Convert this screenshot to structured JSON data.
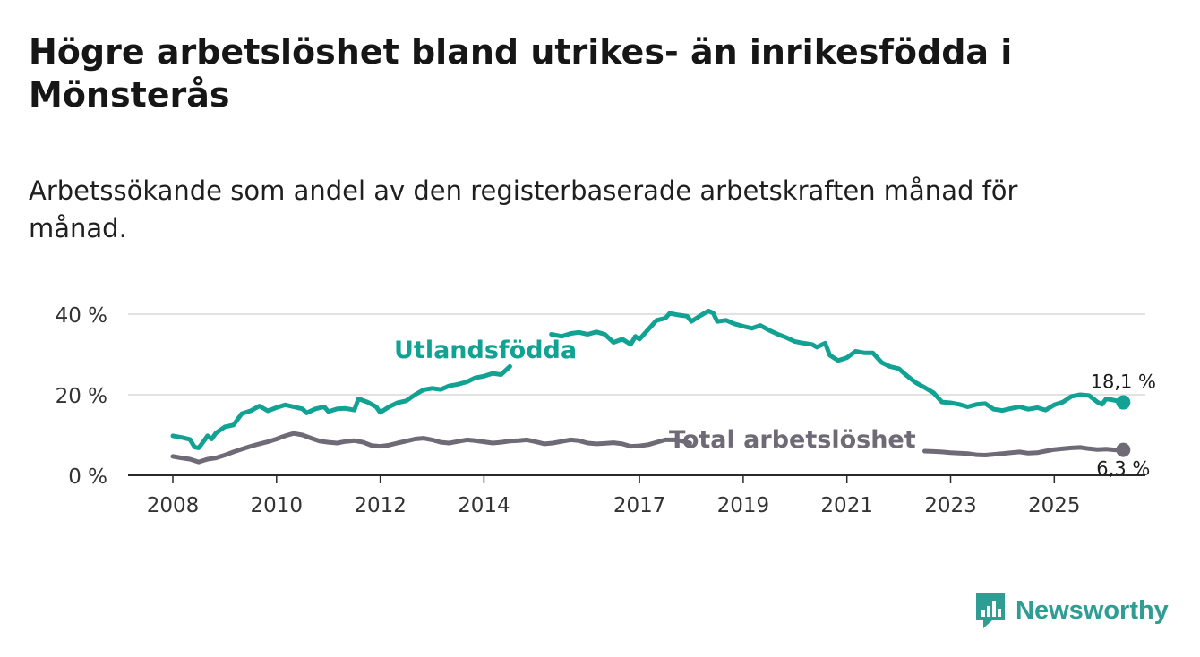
{
  "header": {
    "title": "Högre arbetslöshet bland utrikes- än inrikesfödda i Mönsterås",
    "subtitle": "Arbetssökande som andel av den registerbaserade arbetskraften månad för månad."
  },
  "brand": {
    "name": "Newsworthy",
    "icon": "newsworthy-logo-icon",
    "color": "#2f9d93"
  },
  "colors": {
    "foreign_born": "#12a293",
    "total": "#6e6b76",
    "grid": "#d8d8d8",
    "axis": "#2a2a2a"
  },
  "chart_data": {
    "type": "line",
    "title": "Högre arbetslöshet bland utrikes- än inrikesfödda i Mönsterås",
    "xlabel": "",
    "ylabel": "",
    "xlim": [
      2007.75,
      2026.6
    ],
    "ylim": [
      0,
      40
    ],
    "grid": true,
    "x_ticks": [
      2008,
      2010,
      2012,
      2014,
      2017,
      2019,
      2021,
      2023,
      2025
    ],
    "x_tick_labels": [
      "2008",
      "2010",
      "2012",
      "2014",
      "2017",
      "2019",
      "2021",
      "2023",
      "2025"
    ],
    "y_ticks": [
      0,
      20,
      40
    ],
    "y_tick_labels": [
      "0 %",
      "20 %",
      "40 %"
    ],
    "series": [
      {
        "name": "Utlandsfödda",
        "end_label": "18,1 %",
        "points": [
          [
            2008.0,
            9.8
          ],
          [
            2008.17,
            9.4
          ],
          [
            2008.33,
            8.9
          ],
          [
            2008.42,
            7.0
          ],
          [
            2008.5,
            6.8
          ],
          [
            2008.58,
            8.2
          ],
          [
            2008.67,
            9.8
          ],
          [
            2008.75,
            9.0
          ],
          [
            2008.83,
            10.5
          ],
          [
            2009.0,
            12.0
          ],
          [
            2009.17,
            12.5
          ],
          [
            2009.33,
            15.3
          ],
          [
            2009.5,
            16.0
          ],
          [
            2009.67,
            17.2
          ],
          [
            2009.83,
            16.0
          ],
          [
            2010.0,
            16.8
          ],
          [
            2010.17,
            17.5
          ],
          [
            2010.33,
            17.0
          ],
          [
            2010.5,
            16.5
          ],
          [
            2010.58,
            15.5
          ],
          [
            2010.75,
            16.5
          ],
          [
            2010.92,
            17.0
          ],
          [
            2011.0,
            15.8
          ],
          [
            2011.17,
            16.5
          ],
          [
            2011.33,
            16.6
          ],
          [
            2011.5,
            16.2
          ],
          [
            2011.58,
            19.0
          ],
          [
            2011.75,
            18.2
          ],
          [
            2011.92,
            17.0
          ],
          [
            2012.0,
            15.6
          ],
          [
            2012.17,
            17.0
          ],
          [
            2012.33,
            18.0
          ],
          [
            2012.5,
            18.5
          ],
          [
            2012.67,
            20.0
          ],
          [
            2012.83,
            21.2
          ],
          [
            2013.0,
            21.6
          ],
          [
            2013.17,
            21.3
          ],
          [
            2013.33,
            22.2
          ],
          [
            2013.5,
            22.6
          ],
          [
            2013.67,
            23.2
          ],
          [
            2013.83,
            24.2
          ],
          [
            2014.0,
            24.6
          ],
          [
            2014.17,
            25.3
          ],
          [
            2014.33,
            25.0
          ],
          [
            2014.5,
            27.0
          ]
        ],
        "points_b": [
          [
            2015.3,
            35.0
          ],
          [
            2015.5,
            34.5
          ],
          [
            2015.67,
            35.2
          ],
          [
            2015.83,
            35.5
          ],
          [
            2016.0,
            35.0
          ],
          [
            2016.17,
            35.6
          ],
          [
            2016.33,
            35.0
          ],
          [
            2016.5,
            33.0
          ],
          [
            2016.67,
            33.8
          ],
          [
            2016.83,
            32.5
          ],
          [
            2016.92,
            34.5
          ],
          [
            2017.0,
            33.8
          ],
          [
            2017.17,
            36.2
          ],
          [
            2017.33,
            38.5
          ],
          [
            2017.5,
            39.0
          ],
          [
            2017.58,
            40.2
          ],
          [
            2017.75,
            39.8
          ],
          [
            2017.92,
            39.5
          ],
          [
            2018.0,
            38.2
          ],
          [
            2018.17,
            39.6
          ],
          [
            2018.33,
            40.8
          ],
          [
            2018.42,
            40.3
          ],
          [
            2018.5,
            38.2
          ],
          [
            2018.67,
            38.5
          ],
          [
            2018.83,
            37.6
          ],
          [
            2019.0,
            37.0
          ],
          [
            2019.17,
            36.5
          ],
          [
            2019.33,
            37.2
          ],
          [
            2019.5,
            36.0
          ],
          [
            2019.67,
            35.0
          ],
          [
            2019.83,
            34.2
          ],
          [
            2020.0,
            33.2
          ],
          [
            2020.17,
            32.8
          ],
          [
            2020.33,
            32.5
          ],
          [
            2020.42,
            31.8
          ],
          [
            2020.58,
            32.8
          ],
          [
            2020.67,
            29.8
          ],
          [
            2020.83,
            28.5
          ],
          [
            2021.0,
            29.2
          ],
          [
            2021.17,
            30.8
          ],
          [
            2021.33,
            30.4
          ],
          [
            2021.5,
            30.4
          ],
          [
            2021.67,
            28.0
          ],
          [
            2021.83,
            27.0
          ],
          [
            2022.0,
            26.5
          ],
          [
            2022.17,
            24.6
          ],
          [
            2022.33,
            23.0
          ],
          [
            2022.5,
            21.8
          ],
          [
            2022.67,
            20.5
          ],
          [
            2022.83,
            18.2
          ],
          [
            2023.0,
            18.0
          ],
          [
            2023.17,
            17.6
          ],
          [
            2023.33,
            17.0
          ],
          [
            2023.5,
            17.6
          ],
          [
            2023.67,
            17.8
          ],
          [
            2023.83,
            16.4
          ],
          [
            2024.0,
            16.1
          ],
          [
            2024.17,
            16.6
          ],
          [
            2024.33,
            17.0
          ],
          [
            2024.5,
            16.4
          ],
          [
            2024.67,
            16.8
          ],
          [
            2024.83,
            16.2
          ],
          [
            2025.0,
            17.5
          ],
          [
            2025.17,
            18.2
          ],
          [
            2025.33,
            19.6
          ],
          [
            2025.5,
            20.0
          ],
          [
            2025.67,
            19.8
          ],
          [
            2025.83,
            18.2
          ],
          [
            2025.92,
            17.6
          ],
          [
            2026.0,
            19.0
          ],
          [
            2026.17,
            18.6
          ],
          [
            2026.33,
            18.1
          ]
        ]
      },
      {
        "name": "Total arbetslöshet",
        "end_label": "6,3 %",
        "points": [
          [
            2008.0,
            4.7
          ],
          [
            2008.17,
            4.3
          ],
          [
            2008.33,
            4.0
          ],
          [
            2008.5,
            3.3
          ],
          [
            2008.67,
            4.0
          ],
          [
            2008.83,
            4.3
          ],
          [
            2009.0,
            5.0
          ],
          [
            2009.17,
            5.8
          ],
          [
            2009.33,
            6.5
          ],
          [
            2009.5,
            7.2
          ],
          [
            2009.67,
            7.8
          ],
          [
            2009.83,
            8.3
          ],
          [
            2010.0,
            9.0
          ],
          [
            2010.17,
            9.8
          ],
          [
            2010.33,
            10.4
          ],
          [
            2010.5,
            10.0
          ],
          [
            2010.67,
            9.2
          ],
          [
            2010.83,
            8.5
          ],
          [
            2011.0,
            8.2
          ],
          [
            2011.17,
            8.0
          ],
          [
            2011.33,
            8.4
          ],
          [
            2011.5,
            8.6
          ],
          [
            2011.67,
            8.2
          ],
          [
            2011.83,
            7.4
          ],
          [
            2012.0,
            7.2
          ],
          [
            2012.17,
            7.5
          ],
          [
            2012.33,
            8.0
          ],
          [
            2012.5,
            8.5
          ],
          [
            2012.67,
            9.0
          ],
          [
            2012.83,
            9.2
          ],
          [
            2013.0,
            8.8
          ],
          [
            2013.17,
            8.2
          ],
          [
            2013.33,
            8.0
          ],
          [
            2013.5,
            8.4
          ],
          [
            2013.67,
            8.8
          ],
          [
            2013.83,
            8.6
          ],
          [
            2014.0,
            8.3
          ],
          [
            2014.17,
            8.0
          ],
          [
            2014.33,
            8.2
          ],
          [
            2014.5,
            8.5
          ],
          [
            2014.67,
            8.6
          ],
          [
            2014.83,
            8.8
          ],
          [
            2015.0,
            8.3
          ],
          [
            2015.17,
            7.8
          ],
          [
            2015.33,
            8.0
          ],
          [
            2015.5,
            8.4
          ],
          [
            2015.67,
            8.8
          ],
          [
            2015.83,
            8.6
          ],
          [
            2016.0,
            8.0
          ],
          [
            2016.17,
            7.8
          ],
          [
            2016.33,
            7.9
          ],
          [
            2016.5,
            8.1
          ],
          [
            2016.67,
            7.8
          ],
          [
            2016.83,
            7.2
          ],
          [
            2017.0,
            7.3
          ],
          [
            2017.17,
            7.6
          ],
          [
            2017.33,
            8.2
          ],
          [
            2017.5,
            8.8
          ],
          [
            2017.67,
            8.8
          ],
          [
            2017.83,
            8.5
          ],
          [
            2017.97,
            8.0
          ]
        ],
        "points_b": [
          [
            2022.5,
            6.0
          ],
          [
            2022.67,
            5.9
          ],
          [
            2022.83,
            5.8
          ],
          [
            2023.0,
            5.6
          ],
          [
            2023.17,
            5.5
          ],
          [
            2023.33,
            5.4
          ],
          [
            2023.5,
            5.1
          ],
          [
            2023.67,
            5.0
          ],
          [
            2023.83,
            5.2
          ],
          [
            2024.0,
            5.4
          ],
          [
            2024.17,
            5.6
          ],
          [
            2024.33,
            5.8
          ],
          [
            2024.5,
            5.5
          ],
          [
            2024.67,
            5.6
          ],
          [
            2024.83,
            6.0
          ],
          [
            2025.0,
            6.4
          ],
          [
            2025.17,
            6.6
          ],
          [
            2025.33,
            6.8
          ],
          [
            2025.5,
            6.9
          ],
          [
            2025.67,
            6.6
          ],
          [
            2025.83,
            6.4
          ],
          [
            2026.0,
            6.5
          ],
          [
            2026.17,
            6.3
          ],
          [
            2026.33,
            6.3
          ]
        ]
      }
    ]
  }
}
